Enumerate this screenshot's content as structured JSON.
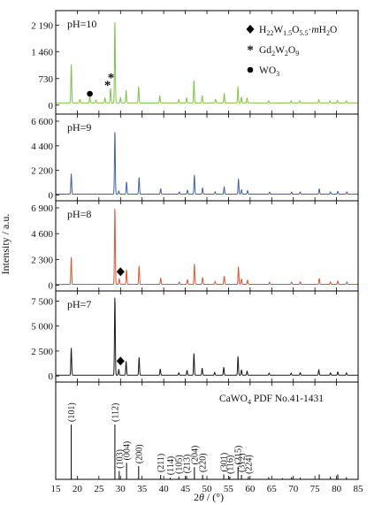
{
  "figure": {
    "ylabel": "Intensity / a.u.",
    "xlabel_theta": "θ",
    "xlabel_prefix": "2",
    "xlabel_suffix": " / (°)"
  },
  "chart_data": {
    "type": "line",
    "x_range": [
      15,
      85
    ],
    "x_ticks": [
      15,
      20,
      25,
      30,
      35,
      40,
      45,
      50,
      55,
      60,
      65,
      70,
      75,
      80,
      85
    ],
    "x_tick_labels": [
      "15",
      "20",
      "25",
      "30",
      "35",
      "40",
      "45",
      "50",
      "55",
      "60",
      "65",
      "70",
      "75",
      "80",
      "85"
    ],
    "ylabel": "Intensity / a.u.",
    "xlabel": "2θ / (°)",
    "panels": [
      {
        "id": "ph10",
        "label": "pH=10",
        "color": "#7cc44a",
        "ylim": [
          -150,
          2400
        ],
        "yticks": [
          0,
          730,
          1460,
          2190
        ],
        "ytick_labels": [
          "0",
          "730",
          "1 460",
          "2 190"
        ],
        "baseline": 60,
        "peaks": [
          [
            18.6,
            1050
          ],
          [
            20.6,
            100
          ],
          [
            22.9,
            180
          ],
          [
            24.3,
            80
          ],
          [
            26.4,
            140
          ],
          [
            27.7,
            400
          ],
          [
            28.7,
            2260
          ],
          [
            30.0,
            150
          ],
          [
            31.3,
            350
          ],
          [
            34.2,
            440
          ],
          [
            39.1,
            200
          ],
          [
            43.5,
            90
          ],
          [
            45.3,
            140
          ],
          [
            47.0,
            620
          ],
          [
            48.9,
            200
          ],
          [
            52.0,
            100
          ],
          [
            54.0,
            260
          ],
          [
            57.2,
            450
          ],
          [
            58.0,
            160
          ],
          [
            59.3,
            140
          ],
          [
            64.3,
            60
          ],
          [
            69.5,
            60
          ],
          [
            71.5,
            60
          ],
          [
            75.9,
            90
          ],
          [
            78.5,
            60
          ],
          [
            80.2,
            70
          ],
          [
            82.3,
            60
          ]
        ]
      },
      {
        "id": "ph9",
        "label": "pH=9",
        "color": "#3f62a8",
        "ylim": [
          -200,
          6600
        ],
        "yticks": [
          0,
          2200,
          4400,
          6600
        ],
        "ytick_labels": [
          "0",
          "2 200",
          "4 400",
          "6 600"
        ],
        "baseline": 80,
        "peaks": [
          [
            18.6,
            1800
          ],
          [
            28.7,
            5650
          ],
          [
            29.6,
            300
          ],
          [
            31.4,
            1100
          ],
          [
            34.3,
            1500
          ],
          [
            39.3,
            480
          ],
          [
            43.6,
            200
          ],
          [
            45.5,
            360
          ],
          [
            47.1,
            1700
          ],
          [
            49.0,
            560
          ],
          [
            51.9,
            220
          ],
          [
            54.0,
            650
          ],
          [
            57.3,
            1350
          ],
          [
            58.0,
            400
          ],
          [
            59.4,
            320
          ],
          [
            64.5,
            180
          ],
          [
            69.6,
            180
          ],
          [
            71.6,
            200
          ],
          [
            76.0,
            480
          ],
          [
            78.6,
            200
          ],
          [
            80.3,
            260
          ],
          [
            82.4,
            200
          ]
        ]
      },
      {
        "id": "ph8",
        "label": "pH=8",
        "color": "#e4542f",
        "ylim": [
          -200,
          6900
        ],
        "yticks": [
          0,
          2300,
          4600,
          6900
        ],
        "ytick_labels": [
          "0",
          "2 300",
          "4 600",
          "6 900"
        ],
        "baseline": 80,
        "peaks": [
          [
            18.6,
            2400
          ],
          [
            28.7,
            6850
          ],
          [
            29.7,
            500
          ],
          [
            31.4,
            1300
          ],
          [
            34.3,
            1650
          ],
          [
            39.3,
            560
          ],
          [
            43.6,
            220
          ],
          [
            45.5,
            420
          ],
          [
            47.1,
            1800
          ],
          [
            49.0,
            620
          ],
          [
            51.9,
            260
          ],
          [
            54.0,
            720
          ],
          [
            57.3,
            1550
          ],
          [
            58.0,
            480
          ],
          [
            59.4,
            380
          ],
          [
            64.5,
            200
          ],
          [
            69.6,
            200
          ],
          [
            71.6,
            240
          ],
          [
            76.0,
            520
          ],
          [
            78.6,
            220
          ],
          [
            80.3,
            300
          ],
          [
            82.4,
            220
          ]
        ]
      },
      {
        "id": "ph7",
        "label": "pH=7",
        "color": "#1a1a1a",
        "ylim": [
          -250,
          7800
        ],
        "yticks": [
          0,
          2500,
          5000,
          7500
        ],
        "ytick_labels": [
          "0",
          "2 500",
          "5 000",
          "7 500"
        ],
        "baseline": 80,
        "peaks": [
          [
            18.6,
            2700
          ],
          [
            28.7,
            7900
          ],
          [
            29.6,
            600
          ],
          [
            31.3,
            1400
          ],
          [
            34.3,
            1800
          ],
          [
            39.2,
            620
          ],
          [
            43.5,
            250
          ],
          [
            45.4,
            500
          ],
          [
            47.0,
            2200
          ],
          [
            48.9,
            700
          ],
          [
            51.8,
            300
          ],
          [
            53.9,
            800
          ],
          [
            57.2,
            1900
          ],
          [
            58.0,
            540
          ],
          [
            59.3,
            420
          ],
          [
            64.4,
            220
          ],
          [
            69.5,
            220
          ],
          [
            71.6,
            260
          ],
          [
            75.9,
            560
          ],
          [
            78.6,
            250
          ],
          [
            80.3,
            340
          ],
          [
            82.3,
            240
          ]
        ]
      }
    ],
    "markers": [
      {
        "panel": "ph10",
        "symbol": "circle",
        "x": 22.9,
        "y": 310
      },
      {
        "panel": "ph10",
        "symbol": "asterisk",
        "x": 27.0,
        "y": 560
      },
      {
        "panel": "ph10",
        "symbol": "asterisk",
        "x": 27.8,
        "y": 760
      },
      {
        "panel": "ph8",
        "symbol": "diamond",
        "x": 30.0,
        "y": 1200
      },
      {
        "panel": "ph7",
        "symbol": "diamond",
        "x": 30.0,
        "y": 1500
      }
    ],
    "legend": {
      "placement": "top-right",
      "entries": [
        {
          "symbol": "diamond",
          "base": "H",
          "parts": [
            [
              "22",
              true
            ],
            [
              "W",
              false
            ],
            [
              "1.5",
              true
            ],
            [
              "O",
              false
            ],
            [
              "5.5",
              true
            ],
            [
              "·",
              false
            ],
            [
              "m",
              false,
              true
            ],
            [
              "H",
              false
            ],
            [
              "2",
              true
            ],
            [
              "O",
              false
            ]
          ]
        },
        {
          "symbol": "asterisk",
          "parts": [
            [
              "Gd",
              false
            ],
            [
              "2",
              true
            ],
            [
              "W",
              false
            ],
            [
              "2",
              true
            ],
            [
              "O",
              false
            ],
            [
              "9",
              true
            ]
          ]
        },
        {
          "symbol": "circle",
          "parts": [
            [
              "WO",
              false
            ],
            [
              "3",
              true
            ]
          ]
        }
      ]
    },
    "reference": {
      "title_parts": [
        [
          "CaWO",
          false
        ],
        [
          "4",
          true
        ],
        [
          " PDF No.41-1431",
          false
        ]
      ],
      "ylim": [
        0,
        100
      ],
      "lines": [
        {
          "x": 18.6,
          "h": 100,
          "label": "(101)"
        },
        {
          "x": 28.7,
          "h": 100,
          "label": "(112)"
        },
        {
          "x": 29.7,
          "h": 15,
          "label": "(103)"
        },
        {
          "x": 31.4,
          "h": 30,
          "label": "(004)"
        },
        {
          "x": 34.2,
          "h": 24,
          "label": "(200)"
        },
        {
          "x": 39.3,
          "h": 8,
          "label": "(211)"
        },
        {
          "x": 41.5,
          "h": 3,
          "label": "(114)"
        },
        {
          "x": 43.5,
          "h": 5,
          "label": "(105)"
        },
        {
          "x": 45.3,
          "h": 6,
          "label": "(213)"
        },
        {
          "x": 47.1,
          "h": 22,
          "label": "(204)"
        },
        {
          "x": 49.0,
          "h": 8,
          "label": "(220)"
        },
        {
          "x": 53.9,
          "h": 9,
          "label": "(301)"
        },
        {
          "x": 55.3,
          "h": 5,
          "label": "(116)"
        },
        {
          "x": 57.2,
          "h": 22,
          "label": "(215)"
        },
        {
          "x": 58.0,
          "h": 8,
          "label": "(312)"
        },
        {
          "x": 59.6,
          "h": 5,
          "label": "(224)"
        },
        {
          "x": 64.3,
          "h": 4,
          "label": ""
        },
        {
          "x": 67.5,
          "h": 2,
          "label": ""
        },
        {
          "x": 69.6,
          "h": 4,
          "label": ""
        },
        {
          "x": 71.6,
          "h": 3,
          "label": ""
        },
        {
          "x": 76.0,
          "h": 9,
          "label": ""
        },
        {
          "x": 78.6,
          "h": 5,
          "label": ""
        },
        {
          "x": 80.3,
          "h": 9,
          "label": ""
        },
        {
          "x": 82.3,
          "h": 4,
          "label": ""
        }
      ]
    }
  }
}
